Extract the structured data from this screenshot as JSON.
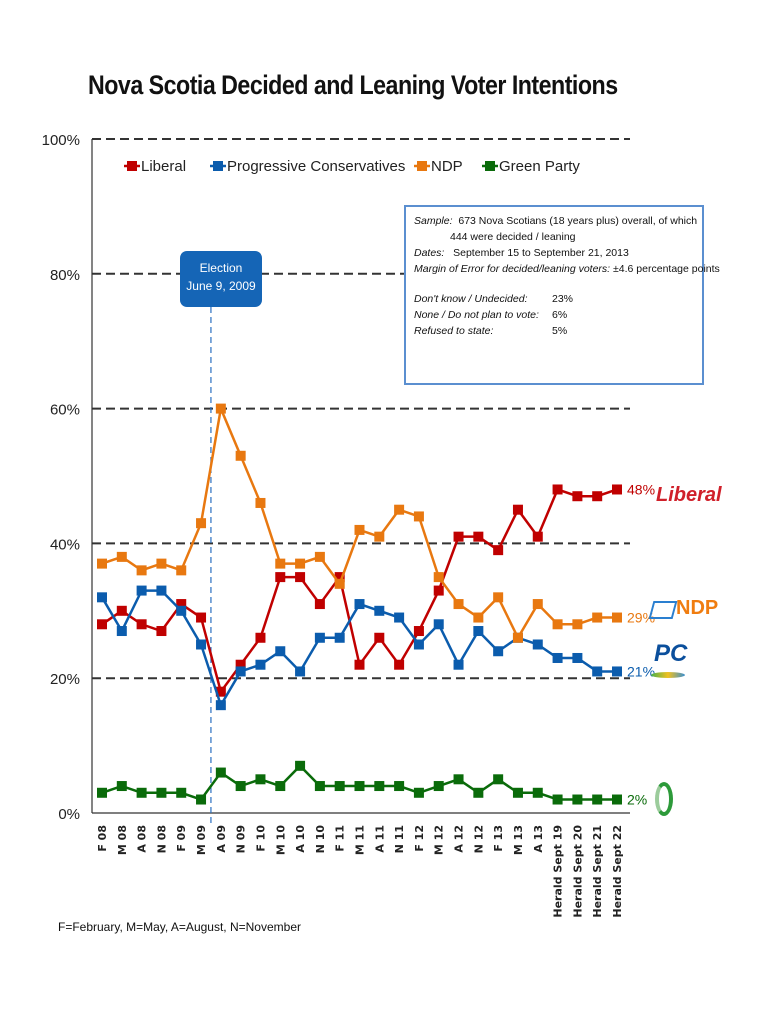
{
  "chart_data": {
    "type": "line",
    "title": "Nova Scotia Decided and Leaning Voter Intentions",
    "xlabel": "",
    "ylabel": "",
    "ylim": [
      0,
      100
    ],
    "yticks": [
      "0%",
      "20%",
      "40%",
      "60%",
      "80%",
      "100%"
    ],
    "ytick_values": [
      0,
      20,
      40,
      60,
      80,
      100
    ],
    "grid": "dashed horizontal",
    "legend_position": "top",
    "categories": [
      "F 08",
      "M 08",
      "A 08",
      "N 08",
      "F 09",
      "M 09",
      "A 09",
      "N 09",
      "F 10",
      "M 10",
      "A 10",
      "N 10",
      "F 11",
      "M 11",
      "A 11",
      "N 11",
      "F 12",
      "M 12",
      "A 12",
      "N 12",
      "F 13",
      "M 13",
      "A 13",
      "Herald Sept 19",
      "Herald Sept 20",
      "Herald Sept 21",
      "Herald Sept 22"
    ],
    "series": [
      {
        "name": "Liberal",
        "color": "#c00000",
        "values": [
          28,
          30,
          28,
          27,
          31,
          29,
          18,
          22,
          26,
          35,
          35,
          31,
          35,
          22,
          26,
          22,
          27,
          33,
          41,
          41,
          39,
          45,
          41,
          48,
          47,
          47,
          48
        ],
        "end_label": "48%"
      },
      {
        "name": "Progressive Conservatives",
        "color": "#0b5cad",
        "values": [
          32,
          27,
          33,
          33,
          30,
          25,
          16,
          21,
          22,
          24,
          21,
          26,
          26,
          31,
          30,
          29,
          25,
          28,
          22,
          27,
          24,
          26,
          25,
          23,
          23,
          21,
          21
        ],
        "end_label": "21%"
      },
      {
        "name": "NDP",
        "color": "#e87810",
        "values": [
          37,
          38,
          36,
          37,
          36,
          43,
          60,
          53,
          46,
          37,
          37,
          38,
          34,
          42,
          41,
          45,
          44,
          35,
          31,
          29,
          32,
          26,
          31,
          28,
          28,
          29,
          29
        ],
        "end_label": "29%"
      },
      {
        "name": "Green Party",
        "color": "#0a6b0a",
        "values": [
          3,
          4,
          3,
          3,
          3,
          2,
          6,
          4,
          5,
          4,
          7,
          4,
          4,
          4,
          4,
          4,
          3,
          4,
          5,
          3,
          5,
          3,
          3,
          2,
          2,
          2,
          2
        ],
        "end_label": "2%"
      }
    ],
    "annotations": [
      {
        "type": "vertical-line",
        "between": [
          "M 09",
          "A 09"
        ],
        "label": "Election June 9, 2009"
      }
    ]
  },
  "election_box": {
    "line1": "Election",
    "line2": "June 9, 2009"
  },
  "info_box": {
    "sample_label": "Sample:",
    "sample_text": "673 Nova Scotians (18 years plus) overall, of which",
    "sample_text2": "444 were decided / leaning",
    "dates_label": "Dates:",
    "dates_text": "September 15 to September 21, 2013",
    "moe_label": "Margin of Error for decided/leaning voters:",
    "moe_text": "±4.6 percentage points",
    "stats": [
      {
        "label": "Don't know / Undecided:",
        "value": "23%"
      },
      {
        "label": "None / Do not plan to vote:",
        "value": "6%"
      },
      {
        "label": "Refused to state:",
        "value": "5%"
      }
    ]
  },
  "logos": {
    "liberal": "Liberal",
    "ndp": "NDP",
    "pc": "PC"
  },
  "footnote": "F=February, M=May, A=August, N=November"
}
